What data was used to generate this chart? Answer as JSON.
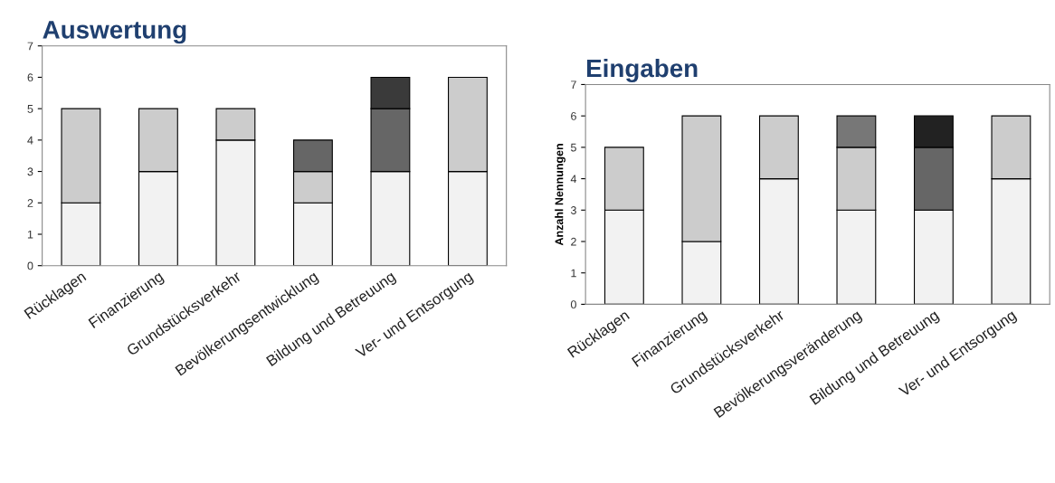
{
  "chart_data": [
    {
      "type": "bar",
      "title": "Auswertung",
      "stacked": true,
      "categories": [
        "Rücklagen",
        "Finanzierung",
        "Grundstücksverkehr",
        "Bevölkerungsentwicklung",
        "Bildung und Betreuung",
        "Ver- und Entsorgung"
      ],
      "series": [
        {
          "colors": [
            "#f2f2f2",
            "#f2f2f2",
            "#f2f2f2",
            "#f2f2f2",
            "#f2f2f2",
            "#f2f2f2"
          ],
          "values": [
            2,
            3,
            4,
            2,
            3,
            3
          ]
        },
        {
          "colors": [
            "#cccccc",
            "#cccccc",
            "#cccccc",
            "#cccccc",
            "#666666",
            "#cccccc"
          ],
          "values": [
            3,
            2,
            1,
            1,
            2,
            3
          ]
        },
        {
          "colors": [
            "#666666",
            "#666666",
            "#666666",
            "#666666",
            "#3a3a3a",
            "#666666"
          ],
          "values": [
            null,
            null,
            null,
            1,
            1,
            null
          ]
        }
      ],
      "ylim": [
        0,
        7
      ],
      "yticks": [
        0,
        1,
        2,
        3,
        4,
        5,
        6,
        7
      ],
      "grid": false,
      "legend": false
    },
    {
      "type": "bar",
      "title": "Eingaben",
      "ylabel": "Anzahl Nennungen",
      "stacked": true,
      "categories": [
        "Rücklagen",
        "Finanzierung",
        "Grundstücksverkehr",
        "Bevölkerungsveränderung",
        "Bildung und Betreuung",
        "Ver- und Entsorgung"
      ],
      "series": [
        {
          "colors": [
            "#f2f2f2",
            "#f2f2f2",
            "#f2f2f2",
            "#f2f2f2",
            "#f2f2f2",
            "#f2f2f2"
          ],
          "values": [
            3,
            2,
            4,
            3,
            3,
            4
          ]
        },
        {
          "colors": [
            "#cccccc",
            "#cccccc",
            "#cccccc",
            "#cccccc",
            "#666666",
            "#cccccc"
          ],
          "values": [
            2,
            4,
            2,
            2,
            2,
            2
          ]
        },
        {
          "colors": [
            "#777777",
            "#777777",
            "#777777",
            "#777777",
            "#222222",
            "#777777"
          ],
          "values": [
            null,
            null,
            null,
            1,
            1,
            null
          ]
        }
      ],
      "ylim": [
        0,
        7
      ],
      "yticks": [
        0,
        1,
        2,
        3,
        4,
        5,
        6,
        7
      ],
      "grid": false,
      "legend": false
    }
  ]
}
